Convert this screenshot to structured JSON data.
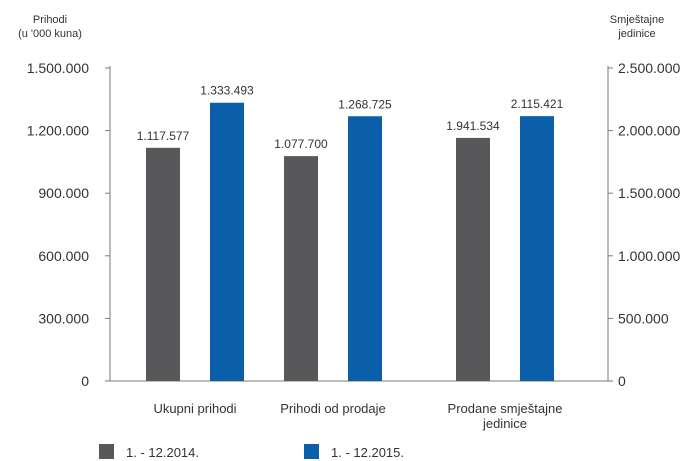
{
  "chart_data": {
    "type": "bar",
    "left_axis": {
      "title_lines": [
        "Prihodi",
        "(u '000 kuna)"
      ],
      "min": 0,
      "max": 1500000,
      "ticks": [
        0,
        300000,
        600000,
        900000,
        1200000,
        1500000
      ],
      "tick_labels": [
        "0",
        "300.000",
        "600.000",
        "900.000",
        "1.200.000",
        "1.500.000"
      ]
    },
    "right_axis": {
      "title_lines": [
        "Smještajne",
        "jedinice"
      ],
      "min": 0,
      "max": 2500000,
      "ticks": [
        0,
        500000,
        1000000,
        1500000,
        2000000,
        2500000
      ],
      "tick_labels": [
        "0",
        "500.000",
        "1.000.000",
        "1.500.000",
        "2.000.000",
        "2.500.000"
      ]
    },
    "categories": [
      {
        "label_lines": [
          "Ukupni prihodi"
        ],
        "axis": "left"
      },
      {
        "label_lines": [
          "Prihodi od prodaje"
        ],
        "axis": "left"
      },
      {
        "label_lines": [
          "Prodane smještajne",
          "jedinice"
        ],
        "axis": "right"
      }
    ],
    "series": [
      {
        "name": "1. - 12.2014.",
        "color": "#58585a",
        "values": [
          1117577,
          1077700,
          1941534
        ],
        "labels": [
          "1.117.577",
          "1.077.700",
          "1.941.534"
        ]
      },
      {
        "name": "1. - 12.2015.",
        "color": "#0b5ea8",
        "values": [
          1333493,
          1268725,
          2115421
        ],
        "labels": [
          "1.333.493",
          "1.268.725",
          "2.115.421"
        ]
      }
    ],
    "legend_position": "bottom-left",
    "grid": false
  }
}
